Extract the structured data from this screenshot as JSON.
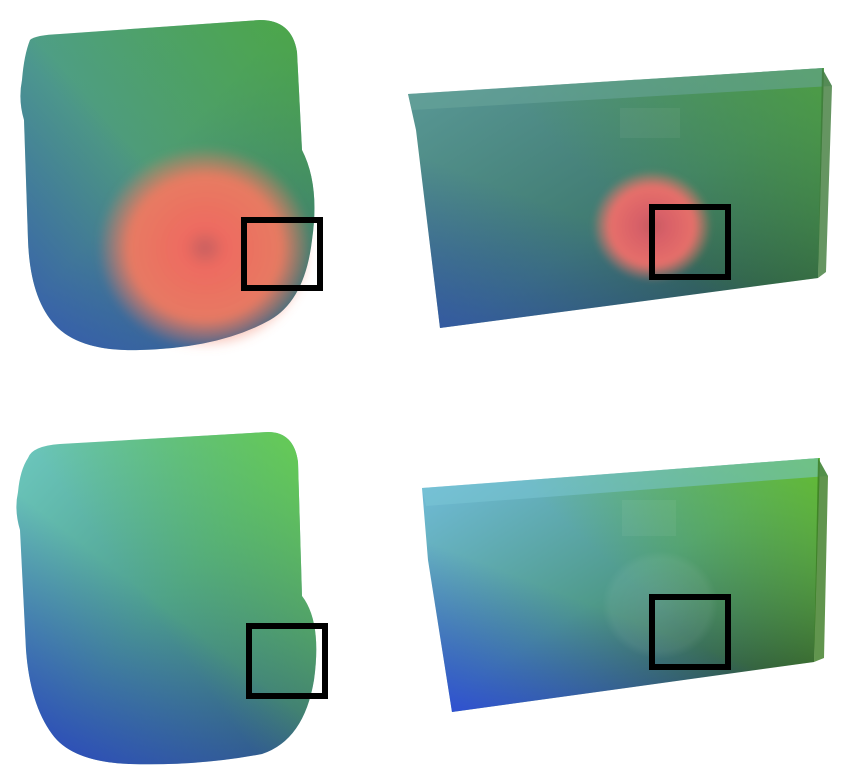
{
  "figure": {
    "panels": [
      {
        "id": "top-left",
        "object": "rounded-shape",
        "highlight": "red-blob",
        "marker": "black-square"
      },
      {
        "id": "top-right",
        "object": "box",
        "highlight": "red-blob",
        "marker": "black-square"
      },
      {
        "id": "bottom-left",
        "object": "rounded-shape",
        "highlight": "none",
        "marker": "black-square"
      },
      {
        "id": "bottom-right",
        "object": "box",
        "highlight": "faint-ghost",
        "marker": "black-square"
      }
    ],
    "colors": {
      "teal": "#4fa3a0",
      "green": "#5fbf4f",
      "blue": "#2f4fbf",
      "dark_green": "#2b5a2b",
      "red": "#f06060",
      "orange": "#f0a060",
      "marker": "#000000"
    }
  }
}
